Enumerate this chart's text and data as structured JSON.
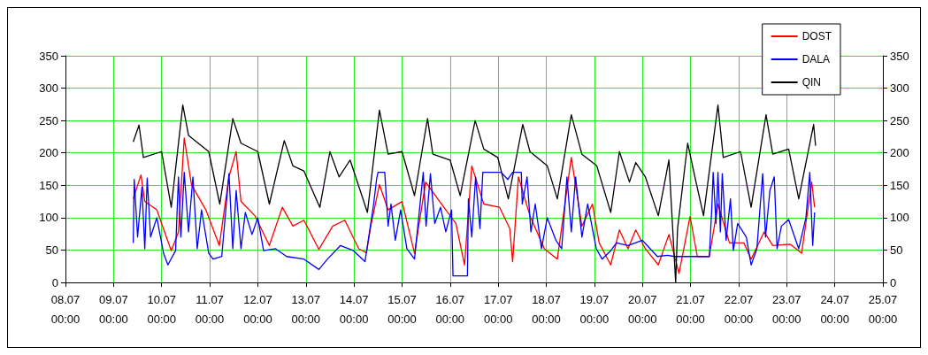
{
  "chart_data": {
    "type": "line",
    "xlim": [
      "--07-08T00:00",
      "--07-25T00:00"
    ],
    "xticks": [
      {
        "value": "--07-08T00:00",
        "label": "08.07\n00:00"
      },
      {
        "value": "--07-09T00:00",
        "label": "09.07\n00:00"
      },
      {
        "value": "--07-10T00:00",
        "label": "10.07\n00:00"
      },
      {
        "value": "--07-11T00:00",
        "label": "11.07\n00:00"
      },
      {
        "value": "--07-12T00:00",
        "label": "12.07\n00:00"
      },
      {
        "value": "--07-13T00:00",
        "label": "13.07\n00:00"
      },
      {
        "value": "--07-14T00:00",
        "label": "14.07\n00:00"
      },
      {
        "value": "--07-15T00:00",
        "label": "15.07\n00:00"
      },
      {
        "value": "--07-16T00:00",
        "label": "16.07\n00:00"
      },
      {
        "value": "--07-17T00:00",
        "label": "17.07\n00:00"
      },
      {
        "value": "--07-18T00:00",
        "label": "18.07\n00:00"
      },
      {
        "value": "--07-19T00:00",
        "label": "19.07\n00:00"
      },
      {
        "value": "--07-20T00:00",
        "label": "20.07\n00:00"
      },
      {
        "value": "--07-21T00:00",
        "label": "21.07\n00:00"
      },
      {
        "value": "--07-22T00:00",
        "label": "22.07\n00:00"
      },
      {
        "value": "--07-23T00:00",
        "label": "23.07\n00:00"
      },
      {
        "value": "--07-24T00:00",
        "label": "24.07\n00:00"
      },
      {
        "value": "--07-25T00:00",
        "label": "25.07\n00:00"
      }
    ],
    "ylim": [
      0,
      350
    ],
    "yticks": [
      0,
      50,
      100,
      150,
      200,
      250,
      300,
      350
    ],
    "y2lim": [
      0,
      350
    ],
    "y2ticks": [
      0,
      50,
      100,
      150,
      200,
      250,
      300,
      350
    ],
    "grid": true,
    "legend": "top right",
    "marker": "none",
    "line_style": "solid",
    "series": [
      {
        "name": "DOST",
        "color": "#ff0000",
        "x": [
          "--07-09T09:50",
          "--07-09T13:41",
          "--07-09T15:36",
          "--07-09T21:36",
          "--07-10T04:48",
          "--07-10T08:24",
          "--07-10T11:17",
          "--07-10T14:53",
          "--07-10T22:05",
          "--07-11T04:48",
          "--07-11T09:36",
          "--07-11T13:12",
          "--07-11T15:36",
          "--07-11T22:34",
          "--07-12T05:46",
          "--07-12T12:14",
          "--07-12T17:31",
          "--07-12T23:02",
          "--07-13T06:29",
          "--07-13T13:26",
          "--07-13T19:26",
          "--07-14T02:24",
          "--07-14T06:14",
          "--07-14T08:24",
          "--07-14T12:43",
          "--07-14T17:02",
          "--07-15T00:00",
          "--07-15T06:14",
          "--07-15T11:46",
          "--07-15T21:50",
          "--07-16T02:53",
          "--07-16T07:12",
          "--07-16T10:48",
          "--07-16T16:48",
          "--07-17T00:43",
          "--07-17T05:46",
          "--07-17T07:12",
          "--07-17T10:05",
          "--07-17T15:50",
          "--07-17T23:02",
          "--07-18T05:31",
          "--07-18T12:29",
          "--07-18T17:46",
          "--07-18T23:02",
          "--07-19T02:24",
          "--07-19T08:10",
          "--07-19T12:29",
          "--07-19T16:48",
          "--07-19T20:38",
          "--07-20T01:26",
          "--07-20T07:55",
          "--07-20T13:12",
          "--07-20T18:14",
          "--07-20T23:46",
          "--07-21T03:22",
          "--07-21T09:22",
          "--07-21T13:41",
          "--07-21T19:26",
          "--07-22T02:38",
          "--07-22T06:14",
          "--07-22T12:43",
          "--07-22T17:02",
          "--07-23T01:41",
          "--07-23T07:26",
          "--07-23T12:29",
          "--07-23T13:55"
        ],
        "values": [
          129,
          166,
          125,
          112,
          49,
          78,
          223,
          151,
          112,
          57,
          163,
          202,
          125,
          103,
          57,
          116,
          87,
          96,
          51,
          87,
          96,
          52,
          46,
          87,
          151,
          112,
          125,
          45,
          155,
          112,
          91,
          27,
          180,
          121,
          116,
          83,
          32,
          163,
          103,
          52,
          36,
          193,
          87,
          121,
          61,
          27,
          81,
          52,
          81,
          52,
          27,
          74,
          14,
          102,
          40,
          40,
          121,
          61,
          61,
          36,
          78,
          57,
          59,
          45,
          155,
          116
        ]
      },
      {
        "name": "DALA",
        "color": "#0000ff",
        "x": [
          "--07-09T09:50",
          "--07-09T10:19",
          "--07-09T12:00",
          "--07-09T14:10",
          "--07-09T15:36",
          "--07-09T16:48",
          "--07-09T18:29",
          "--07-09T21:36",
          "--07-10T00:58",
          "--07-10T03:07",
          "--07-10T06:58",
          "--07-10T08:24",
          "--07-10T09:36",
          "--07-10T11:17",
          "--07-10T13:26",
          "--07-10T15:36",
          "--07-10T17:46",
          "--07-10T19:55",
          "--07-10T23:31",
          "--07-11T01:41",
          "--07-11T06:00",
          "--07-11T09:36",
          "--07-11T11:31",
          "--07-11T13:12",
          "--07-11T15:36",
          "--07-11T17:46",
          "--07-11T21:07",
          "--07-12T00:00",
          "--07-12T02:53",
          "--07-12T08:53",
          "--07-12T14:24",
          "--07-12T23:02",
          "--07-13T06:29",
          "--07-13T10:48",
          "--07-13T17:17",
          "--07-13T23:46",
          "--07-14T05:31",
          "--07-14T09:50",
          "--07-14T11:17",
          "--07-14T12:00",
          "--07-14T15:22",
          "--07-14T17:02",
          "--07-14T18:29",
          "--07-14T20:38",
          "--07-14T23:17",
          "--07-15T02:24",
          "--07-15T06:14",
          "--07-15T10:34",
          "--07-15T12:00",
          "--07-15T14:10",
          "--07-15T16:19",
          "--07-15T19:12",
          "--07-15T21:50",
          "--07-16T00:43",
          "--07-16T01:26",
          "--07-16T08:38",
          "--07-16T09:07",
          "--07-16T10:48",
          "--07-16T12:43",
          "--07-16T14:53",
          "--07-16T16:19",
          "--07-17T01:26",
          "--07-17T04:48",
          "--07-17T07:12",
          "--07-17T11:31",
          "--07-17T12:00",
          "--07-17T14:24",
          "--07-17T16:19",
          "--07-17T18:29",
          "--07-17T21:36",
          "--07-18T00:29",
          "--07-18T04:48",
          "--07-18T07:41",
          "--07-18T10:19",
          "--07-18T12:29",
          "--07-18T14:38",
          "--07-18T17:46",
          "--07-18T20:38",
          "--07-19T00:58",
          "--07-19T03:50",
          "--07-19T08:10",
          "--07-19T11:02",
          "--07-19T16:48",
          "--07-20T00:00",
          "--07-20T07:26",
          "--07-20T12:29",
          "--07-20T16:05",
          "--07-21T09:22",
          "--07-21T10:34",
          "--07-21T11:17",
          "--07-21T12:43",
          "--07-21T13:41",
          "--07-21T14:53",
          "--07-21T15:50",
          "--07-21T17:46",
          "--07-21T19:55",
          "--07-21T21:22",
          "--07-21T23:31",
          "--07-22T03:50",
          "--07-22T06:14",
          "--07-22T09:07",
          "--07-22T12:00",
          "--07-22T13:26",
          "--07-22T15:36",
          "--07-22T17:46",
          "--07-22T19:12",
          "--07-22T21:22",
          "--07-23T00:58",
          "--07-23T06:00",
          "--07-23T09:36",
          "--07-23T11:31",
          "--07-23T12:58",
          "--07-23T13:55"
        ],
        "values": [
          61,
          159,
          70,
          147,
          52,
          161,
          70,
          100,
          45,
          27,
          49,
          163,
          70,
          170,
          78,
          163,
          52,
          112,
          45,
          36,
          40,
          168,
          52,
          142,
          52,
          108,
          74,
          100,
          49,
          52,
          40,
          36,
          20,
          36,
          57,
          49,
          32,
          121,
          159,
          170,
          170,
          87,
          121,
          65,
          112,
          52,
          36,
          170,
          87,
          168,
          91,
          116,
          78,
          112,
          10,
          10,
          129,
          70,
          163,
          83,
          170,
          170,
          159,
          170,
          170,
          121,
          163,
          78,
          121,
          52,
          100,
          65,
          52,
          163,
          78,
          163,
          70,
          121,
          52,
          36,
          49,
          61,
          57,
          65,
          40,
          42,
          40,
          40,
          112,
          170,
          91,
          170,
          78,
          168,
          65,
          129,
          49,
          91,
          70,
          27,
          52,
          168,
          70,
          142,
          163,
          52,
          87,
          97,
          52,
          100,
          170,
          57,
          108
        ]
      },
      {
        "name": "QIN",
        "color": "#000000",
        "x": [
          "--07-09T09:50",
          "--07-09T12:43",
          "--07-09T14:53",
          "--07-10T00:00",
          "--07-10T04:48",
          "--07-10T10:34",
          "--07-10T13:26",
          "--07-10T23:31",
          "--07-11T05:02",
          "--07-11T11:31",
          "--07-11T15:36",
          "--07-12T00:00",
          "--07-12T05:46",
          "--07-12T13:12",
          "--07-12T17:31",
          "--07-12T23:02",
          "--07-13T06:58",
          "--07-13T12:00",
          "--07-13T16:34",
          "--07-13T22:05",
          "--07-14T06:43",
          "--07-14T12:43",
          "--07-14T17:02",
          "--07-15T00:00",
          "--07-15T06:14",
          "--07-15T12:43",
          "--07-15T15:22",
          "--07-16T00:00",
          "--07-16T05:02",
          "--07-16T12:29",
          "--07-16T16:48",
          "--07-16T23:46",
          "--07-17T05:02",
          "--07-17T12:14",
          "--07-17T15:50",
          "--07-18T00:29",
          "--07-18T05:31",
          "--07-18T12:29",
          "--07-18T17:46",
          "--07-19T01:12",
          "--07-19T08:10",
          "--07-19T12:29",
          "--07-19T17:31",
          "--07-19T20:38",
          "--07-20T01:26",
          "--07-20T07:55",
          "--07-20T13:12",
          "--07-20T16:34",
          "--07-20T17:31",
          "--07-20T22:34",
          "--07-21T02:10",
          "--07-21T06:29",
          "--07-21T13:41",
          "--07-21T16:19",
          "--07-22T00:58",
          "--07-22T06:14",
          "--07-22T13:41",
          "--07-22T17:02",
          "--07-23T00:58",
          "--07-23T06:00",
          "--07-23T13:26",
          "--07-23T14:24"
        ],
        "values": [
          217,
          243,
          193,
          202,
          116,
          274,
          227,
          202,
          121,
          253,
          215,
          202,
          121,
          219,
          180,
          172,
          116,
          202,
          163,
          189,
          108,
          266,
          198,
          202,
          134,
          253,
          198,
          189,
          134,
          250,
          206,
          193,
          129,
          244,
          202,
          180,
          129,
          259,
          198,
          180,
          108,
          202,
          155,
          185,
          163,
          103,
          189,
          0,
          83,
          215,
          163,
          103,
          274,
          193,
          202,
          116,
          259,
          198,
          206,
          129,
          244,
          211
        ]
      }
    ]
  }
}
